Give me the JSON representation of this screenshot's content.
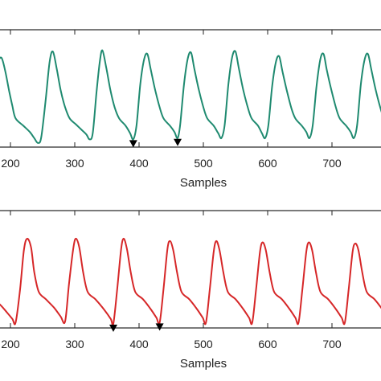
{
  "chart_data": [
    {
      "type": "line",
      "xlabel": "Samples",
      "ylabel": "",
      "x_ticks": [
        200,
        300,
        400,
        500,
        600,
        700
      ],
      "xlim": [
        173,
        800
      ],
      "ylim": [
        0,
        1
      ],
      "grid": false,
      "series": [
        {
          "color": "#1f8a70",
          "points": [
            [
              173,
              0.46
            ],
            [
              180,
              0.66
            ],
            [
              186,
              0.71
            ],
            [
              192,
              0.6
            ],
            [
              198,
              0.44
            ],
            [
              203,
              0.32
            ],
            [
              208,
              0.22
            ],
            [
              220,
              0.16
            ],
            [
              230,
              0.11
            ],
            [
              237,
              0.06
            ],
            [
              243,
              0.02
            ],
            [
              248,
              0.07
            ],
            [
              255,
              0.38
            ],
            [
              261,
              0.68
            ],
            [
              266,
              0.76
            ],
            [
              272,
              0.62
            ],
            [
              278,
              0.45
            ],
            [
              285,
              0.31
            ],
            [
              292,
              0.22
            ],
            [
              302,
              0.17
            ],
            [
              310,
              0.13
            ],
            [
              318,
              0.09
            ],
            [
              323,
              0.05
            ],
            [
              328,
              0.1
            ],
            [
              334,
              0.44
            ],
            [
              339,
              0.68
            ],
            [
              343,
              0.77
            ],
            [
              349,
              0.63
            ],
            [
              355,
              0.46
            ],
            [
              362,
              0.31
            ],
            [
              369,
              0.22
            ],
            [
              379,
              0.16
            ],
            [
              386,
              0.1
            ],
            [
              391,
              0.05
            ],
            [
              396,
              0.16
            ],
            [
              402,
              0.5
            ],
            [
              408,
              0.7
            ],
            [
              413,
              0.74
            ],
            [
              418,
              0.62
            ],
            [
              425,
              0.45
            ],
            [
              432,
              0.31
            ],
            [
              438,
              0.22
            ],
            [
              448,
              0.16
            ],
            [
              455,
              0.11
            ],
            [
              460,
              0.06
            ],
            [
              464,
              0.17
            ],
            [
              470,
              0.5
            ],
            [
              476,
              0.71
            ],
            [
              481,
              0.75
            ],
            [
              486,
              0.62
            ],
            [
              493,
              0.45
            ],
            [
              500,
              0.31
            ],
            [
              506,
              0.22
            ],
            [
              516,
              0.16
            ],
            [
              523,
              0.1
            ],
            [
              528,
              0.06
            ],
            [
              533,
              0.16
            ],
            [
              539,
              0.5
            ],
            [
              545,
              0.72
            ],
            [
              550,
              0.76
            ],
            [
              555,
              0.63
            ],
            [
              562,
              0.45
            ],
            [
              569,
              0.31
            ],
            [
              575,
              0.22
            ],
            [
              585,
              0.16
            ],
            [
              591,
              0.1
            ],
            [
              596,
              0.06
            ],
            [
              601,
              0.16
            ],
            [
              607,
              0.48
            ],
            [
              613,
              0.68
            ],
            [
              618,
              0.72
            ],
            [
              623,
              0.6
            ],
            [
              630,
              0.44
            ],
            [
              637,
              0.3
            ],
            [
              643,
              0.22
            ],
            [
              653,
              0.16
            ],
            [
              660,
              0.11
            ],
            [
              665,
              0.06
            ],
            [
              670,
              0.16
            ],
            [
              676,
              0.48
            ],
            [
              682,
              0.7
            ],
            [
              687,
              0.74
            ],
            [
              692,
              0.61
            ],
            [
              699,
              0.45
            ],
            [
              706,
              0.31
            ],
            [
              712,
              0.22
            ],
            [
              722,
              0.16
            ],
            [
              729,
              0.11
            ],
            [
              734,
              0.06
            ],
            [
              739,
              0.16
            ],
            [
              745,
              0.5
            ],
            [
              751,
              0.7
            ],
            [
              756,
              0.74
            ],
            [
              761,
              0.62
            ],
            [
              768,
              0.45
            ],
            [
              775,
              0.31
            ],
            [
              781,
              0.22
            ],
            [
              791,
              0.16
            ],
            [
              800,
              0.1
            ]
          ]
        }
      ],
      "markers": [
        {
          "x": 391,
          "y": 0.05,
          "shape": "triangle-down",
          "color": "#000000"
        },
        {
          "x": 460,
          "y": 0.06,
          "shape": "triangle-down",
          "color": "#000000"
        }
      ]
    },
    {
      "type": "line",
      "xlabel": "Samples",
      "ylabel": "",
      "x_ticks": [
        200,
        300,
        400,
        500,
        600,
        700
      ],
      "xlim": [
        173,
        800
      ],
      "ylim": [
        0,
        1
      ],
      "grid": false,
      "series": [
        {
          "color": "#d62728",
          "points": [
            [
              173,
              0.23
            ],
            [
              185,
              0.17
            ],
            [
              195,
              0.11
            ],
            [
              203,
              0.06
            ],
            [
              208,
              0.03
            ],
            [
              215,
              0.3
            ],
            [
              221,
              0.62
            ],
            [
              226,
              0.71
            ],
            [
              232,
              0.64
            ],
            [
              237,
              0.44
            ],
            [
              244,
              0.28
            ],
            [
              255,
              0.22
            ],
            [
              268,
              0.15
            ],
            [
              278,
              0.08
            ],
            [
              285,
              0.04
            ],
            [
              291,
              0.34
            ],
            [
              298,
              0.64
            ],
            [
              302,
              0.71
            ],
            [
              307,
              0.64
            ],
            [
              313,
              0.44
            ],
            [
              320,
              0.28
            ],
            [
              332,
              0.22
            ],
            [
              345,
              0.14
            ],
            [
              356,
              0.06
            ],
            [
              360,
              0.02
            ],
            [
              366,
              0.3
            ],
            [
              372,
              0.62
            ],
            [
              376,
              0.71
            ],
            [
              381,
              0.63
            ],
            [
              387,
              0.44
            ],
            [
              394,
              0.28
            ],
            [
              406,
              0.22
            ],
            [
              418,
              0.14
            ],
            [
              427,
              0.07
            ],
            [
              432,
              0.03
            ],
            [
              438,
              0.3
            ],
            [
              444,
              0.62
            ],
            [
              448,
              0.69
            ],
            [
              453,
              0.62
            ],
            [
              459,
              0.44
            ],
            [
              466,
              0.28
            ],
            [
              478,
              0.22
            ],
            [
              490,
              0.14
            ],
            [
              499,
              0.07
            ],
            [
              504,
              0.03
            ],
            [
              510,
              0.3
            ],
            [
              516,
              0.6
            ],
            [
              520,
              0.69
            ],
            [
              525,
              0.62
            ],
            [
              531,
              0.44
            ],
            [
              538,
              0.28
            ],
            [
              550,
              0.22
            ],
            [
              562,
              0.14
            ],
            [
              571,
              0.07
            ],
            [
              576,
              0.03
            ],
            [
              582,
              0.3
            ],
            [
              588,
              0.6
            ],
            [
              592,
              0.68
            ],
            [
              597,
              0.62
            ],
            [
              603,
              0.44
            ],
            [
              610,
              0.28
            ],
            [
              622,
              0.22
            ],
            [
              634,
              0.14
            ],
            [
              643,
              0.07
            ],
            [
              648,
              0.03
            ],
            [
              654,
              0.3
            ],
            [
              660,
              0.6
            ],
            [
              664,
              0.68
            ],
            [
              669,
              0.62
            ],
            [
              675,
              0.44
            ],
            [
              682,
              0.28
            ],
            [
              694,
              0.22
            ],
            [
              706,
              0.14
            ],
            [
              715,
              0.07
            ],
            [
              720,
              0.03
            ],
            [
              726,
              0.3
            ],
            [
              732,
              0.6
            ],
            [
              736,
              0.67
            ],
            [
              741,
              0.62
            ],
            [
              747,
              0.44
            ],
            [
              754,
              0.28
            ],
            [
              766,
              0.22
            ],
            [
              778,
              0.14
            ],
            [
              787,
              0.07
            ],
            [
              792,
              0.03
            ],
            [
              798,
              0.3
            ],
            [
              800,
              0.38
            ]
          ]
        }
      ],
      "markers": [
        {
          "x": 360,
          "y": 0.02,
          "shape": "triangle-down",
          "color": "#000000"
        },
        {
          "x": 432,
          "y": 0.03,
          "shape": "triangle-down",
          "color": "#000000"
        }
      ]
    }
  ]
}
